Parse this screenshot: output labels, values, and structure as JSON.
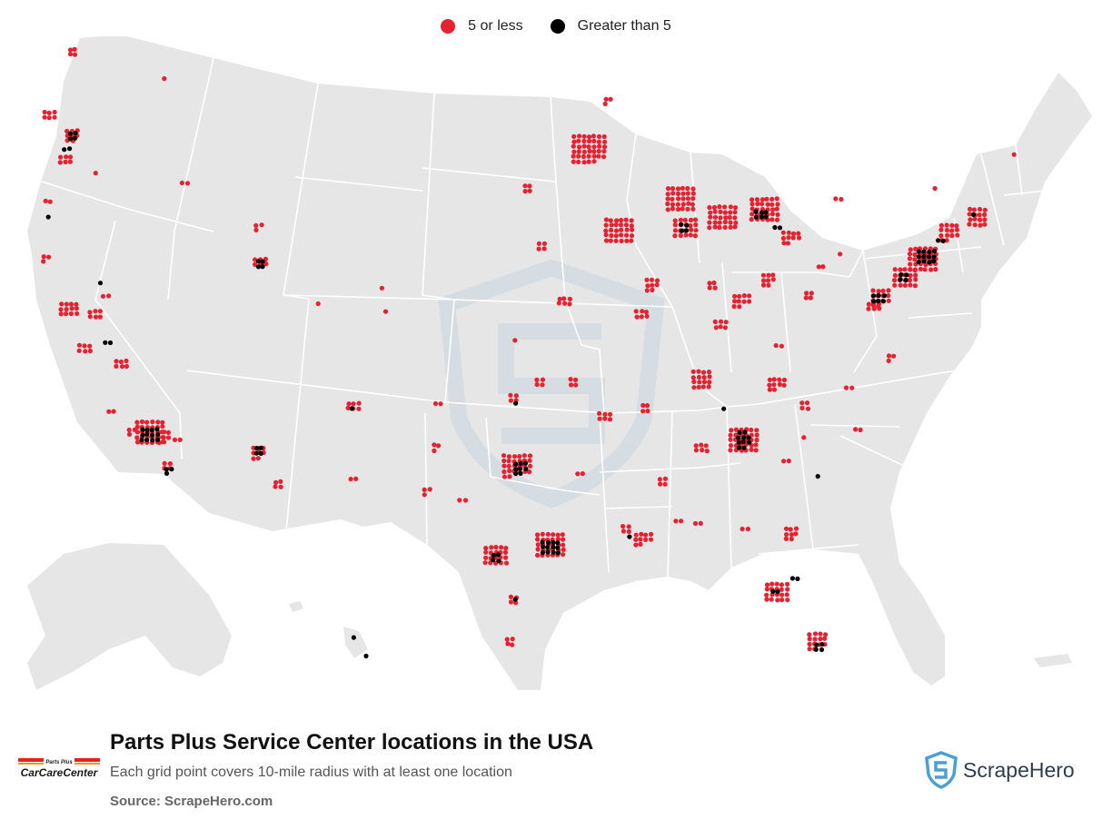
{
  "legend": [
    {
      "label": "5 or less",
      "color": "#e8202f"
    },
    {
      "label": "Greater than 5",
      "color": "#000000"
    }
  ],
  "footer": {
    "title": "Parts Plus Service Center locations in the USA",
    "subtitle": "Each grid point covers 10-mile radius with at least one location",
    "source": "Source: ScrapeHero.com"
  },
  "brand": {
    "name": "CarCareCenter",
    "small_text": "Parts Plus"
  },
  "scrapehero": {
    "name": "ScrapeHero"
  },
  "colors": {
    "land": "#e6e6e6",
    "border": "#ffffff",
    "low": "#e8202f",
    "high": "#000000",
    "watermark": "#c7d4de",
    "brand_red": "#e2231a",
    "brand_orange": "#f7941d",
    "shield_blue": "#4a9fd5"
  },
  "map_data": {
    "low_clusters": [
      [
        -122.6,
        48.7,
        4
      ],
      [
        -123.9,
        46.2,
        6
      ],
      [
        -122.6,
        45.5,
        8
      ],
      [
        -123.0,
        44.5,
        6
      ],
      [
        -124.0,
        42.9,
        2
      ],
      [
        -121.3,
        44.1,
        1
      ],
      [
        -117.4,
        47.7,
        1
      ],
      [
        -124.1,
        40.8,
        3
      ],
      [
        -116.2,
        43.6,
        2
      ],
      [
        -112.0,
        42.0,
        3
      ],
      [
        -111.9,
        40.6,
        6
      ],
      [
        -122.8,
        38.8,
        12
      ],
      [
        -121.3,
        38.6,
        6
      ],
      [
        -120.7,
        39.3,
        2
      ],
      [
        -119.8,
        36.7,
        6
      ],
      [
        -118.2,
        34.1,
        30
      ],
      [
        -117.2,
        32.9,
        4
      ],
      [
        -112.0,
        33.4,
        8
      ],
      [
        -110.9,
        32.2,
        4
      ],
      [
        -108.6,
        39.1,
        1
      ],
      [
        -106.6,
        35.1,
        6
      ],
      [
        -106.6,
        32.3,
        2
      ],
      [
        -104.8,
        38.8,
        1
      ],
      [
        -105.0,
        39.7,
        1
      ],
      [
        -97.4,
        37.7,
        1
      ],
      [
        -96.0,
        36.1,
        4
      ],
      [
        -97.5,
        35.5,
        4
      ],
      [
        -97.3,
        32.8,
        26
      ],
      [
        -98.5,
        29.4,
        20
      ],
      [
        -95.4,
        29.8,
        30
      ],
      [
        -97.5,
        27.8,
        4
      ],
      [
        -97.7,
        26.2,
        4
      ],
      [
        -101.8,
        35.2,
        2
      ],
      [
        -101.9,
        33.6,
        3
      ],
      [
        -102.4,
        31.9,
        3
      ],
      [
        -100.4,
        31.5,
        2
      ],
      [
        -93.2,
        44.9,
        40
      ],
      [
        -92.1,
        46.8,
        3
      ],
      [
        -96.7,
        43.5,
        4
      ],
      [
        -95.9,
        41.3,
        4
      ],
      [
        -94.6,
        39.1,
        6
      ],
      [
        -90.2,
        38.6,
        6
      ],
      [
        -91.5,
        41.8,
        30
      ],
      [
        -88.0,
        43.0,
        30
      ],
      [
        -87.7,
        41.9,
        20
      ],
      [
        -89.6,
        39.8,
        8
      ],
      [
        -86.2,
        39.8,
        4
      ],
      [
        -85.7,
        38.2,
        6
      ],
      [
        -84.5,
        39.1,
        10
      ],
      [
        -83.0,
        40.0,
        8
      ],
      [
        -85.6,
        42.3,
        30
      ],
      [
        -83.2,
        42.6,
        30
      ],
      [
        -81.7,
        41.5,
        10
      ],
      [
        -80.0,
        40.4,
        2
      ],
      [
        -86.8,
        36.2,
        16
      ],
      [
        -90.0,
        35.1,
        4
      ],
      [
        -92.3,
        34.7,
        6
      ],
      [
        -94.1,
        36.1,
        4
      ],
      [
        -84.4,
        33.8,
        30
      ],
      [
        -86.8,
        33.5,
        6
      ],
      [
        -82.5,
        35.9,
        10
      ],
      [
        -80.9,
        35.2,
        4
      ],
      [
        -81.0,
        34.0,
        1
      ],
      [
        -82.0,
        33.0,
        2
      ],
      [
        -81.7,
        30.3,
        8
      ],
      [
        -82.5,
        28.0,
        20
      ],
      [
        -80.2,
        26.2,
        14
      ],
      [
        -84.3,
        30.4,
        2
      ],
      [
        -87.0,
        30.6,
        2
      ],
      [
        -88.1,
        30.7,
        2
      ],
      [
        -90.1,
        30.0,
        10
      ],
      [
        -91.1,
        30.5,
        4
      ],
      [
        -93.7,
        32.5,
        2
      ],
      [
        -89.0,
        32.3,
        4
      ],
      [
        -76.6,
        39.3,
        14
      ],
      [
        -76.0,
        37.0,
        3
      ],
      [
        -75.2,
        40.0,
        20
      ],
      [
        -74.2,
        40.7,
        30
      ],
      [
        -72.7,
        41.8,
        14
      ],
      [
        -71.1,
        42.4,
        16
      ],
      [
        -69.0,
        44.8,
        1
      ],
      [
        -73.5,
        43.5,
        1
      ],
      [
        -78.9,
        41.0,
        1
      ],
      [
        -80.7,
        39.4,
        4
      ],
      [
        -77.0,
        38.9,
        6
      ],
      [
        -82.4,
        37.4,
        2
      ],
      [
        -79.0,
        43.0,
        2
      ],
      [
        -78.4,
        35.8,
        2
      ],
      [
        -77.9,
        34.2,
        2
      ],
      [
        -117.4,
        34.0,
        8
      ],
      [
        -116.6,
        33.8,
        2
      ],
      [
        -121.9,
        37.3,
        6
      ],
      [
        -120.4,
        34.9,
        2
      ],
      [
        -119.2,
        34.2,
        3
      ]
    ],
    "high_clusters": [
      [
        -122.6,
        45.5,
        4
      ],
      [
        -122.9,
        44.9,
        2
      ],
      [
        -124.0,
        42.4,
        1
      ],
      [
        -121.0,
        39.9,
        1
      ],
      [
        -111.9,
        40.6,
        4
      ],
      [
        -118.2,
        34.0,
        12
      ],
      [
        -117.1,
        32.7,
        3
      ],
      [
        -120.6,
        37.5,
        2
      ],
      [
        -112.0,
        33.5,
        4
      ],
      [
        -106.7,
        35.1,
        1
      ],
      [
        -97.4,
        35.3,
        1
      ],
      [
        -97.1,
        32.8,
        8
      ],
      [
        -95.4,
        29.7,
        12
      ],
      [
        -98.5,
        29.4,
        4
      ],
      [
        -97.4,
        27.8,
        1
      ],
      [
        -87.8,
        42.0,
        4
      ],
      [
        -83.4,
        42.4,
        6
      ],
      [
        -82.5,
        41.9,
        2
      ],
      [
        -84.4,
        33.8,
        8
      ],
      [
        -84.5,
        34.1,
        2
      ],
      [
        -81.5,
        28.5,
        2
      ],
      [
        -80.1,
        26.0,
        4
      ],
      [
        -82.6,
        28.0,
        2
      ],
      [
        -90.9,
        30.2,
        1
      ],
      [
        -76.7,
        39.2,
        6
      ],
      [
        -75.3,
        40.1,
        4
      ],
      [
        -74.0,
        40.8,
        12
      ],
      [
        -73.2,
        41.4,
        2
      ],
      [
        -71.3,
        42.5,
        1
      ],
      [
        -85.5,
        35.1,
        1
      ],
      [
        -80.2,
        32.5,
        1
      ],
      [
        -155.5,
        19.7,
        1
      ],
      [
        -157.9,
        21.4,
        1
      ]
    ],
    "watermark": "ScrapeHero shield"
  }
}
